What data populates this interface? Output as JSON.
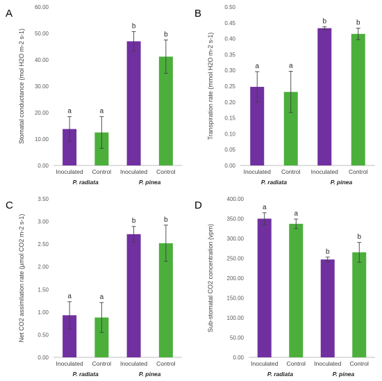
{
  "colors": {
    "inoculated": "#7030A0",
    "control": "#4CAF3C",
    "axis": "#bfbfbf",
    "error": "#404040"
  },
  "chart_data": [
    {
      "type": "bar",
      "panel_label": "A",
      "ylabel": "Stomatal conductance (mol H2O m-2 s-1)",
      "ylim": [
        0,
        60
      ],
      "yticks": [
        "0.00",
        "10.00",
        "20.00",
        "30.00",
        "40.00",
        "50.00",
        "60.00"
      ],
      "categories": [
        "Inoculated",
        "Control",
        "Inoculated",
        "Control"
      ],
      "groups": [
        "P. radiata",
        "P. pinea"
      ],
      "values": [
        13.8,
        12.5,
        47.0,
        41.2
      ],
      "errors": [
        4.7,
        6.0,
        3.7,
        6.3
      ],
      "significance": [
        "a",
        "a",
        "b",
        "b"
      ]
    },
    {
      "type": "bar",
      "panel_label": "B",
      "ylabel": "Transpiration rate (mmol H2O m-2 s-1)",
      "ylim": [
        0,
        0.5
      ],
      "yticks": [
        "0.00",
        "0.05",
        "0.10",
        "0.15",
        "0.20",
        "0.25",
        "0.30",
        "0.35",
        "0.40",
        "0.45",
        "0.50"
      ],
      "categories": [
        "Inoculated",
        "Control",
        "Inoculated",
        "Control"
      ],
      "groups": [
        "P. radiata",
        "P. pinea"
      ],
      "values": [
        0.248,
        0.232,
        0.433,
        0.415
      ],
      "errors": [
        0.048,
        0.065,
        0.005,
        0.018
      ],
      "significance": [
        "a",
        "a",
        "b",
        "b"
      ]
    },
    {
      "type": "bar",
      "panel_label": "C",
      "ylabel": "Net CO2 assimilation rate (µmol CO2 m-2 s-1)",
      "ylim": [
        0,
        3.5
      ],
      "yticks": [
        "0.00",
        "0.50",
        "1.00",
        "1.50",
        "2.00",
        "2.50",
        "3.00",
        "3.50"
      ],
      "categories": [
        "Inoculated",
        "Control",
        "Inoculated",
        "Control"
      ],
      "groups": [
        "P. radiata",
        "P. pinea"
      ],
      "values": [
        0.93,
        0.88,
        2.72,
        2.52
      ],
      "errors": [
        0.3,
        0.33,
        0.17,
        0.4
      ],
      "significance": [
        "a",
        "a",
        "b",
        "b"
      ]
    },
    {
      "type": "bar",
      "panel_label": "D",
      "ylabel": "Sub-stomatal CO2 concentration (vpm)",
      "ylim": [
        0,
        400
      ],
      "yticks": [
        "0.00",
        "50.00",
        "100.00",
        "150.00",
        "200.00",
        "250.00",
        "300.00",
        "350.00",
        "400.00"
      ],
      "categories": [
        "Inoculated",
        "Control",
        "Inoculated",
        "Control"
      ],
      "groups": [
        "P. radiata",
        "P. pinea"
      ],
      "values": [
        350,
        337,
        247,
        265
      ],
      "errors": [
        15,
        12,
        6,
        25
      ],
      "significance": [
        "a",
        "a",
        "b",
        "b"
      ]
    }
  ]
}
